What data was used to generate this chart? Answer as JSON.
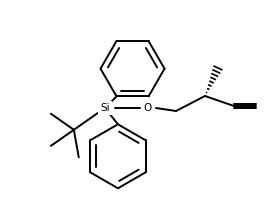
{
  "bg_color": "#ffffff",
  "line_color": "#000000",
  "line_width": 1.4,
  "fig_width": 2.64,
  "fig_height": 2.16,
  "dpi": 100,
  "si_label": "Si",
  "o_label": "O"
}
